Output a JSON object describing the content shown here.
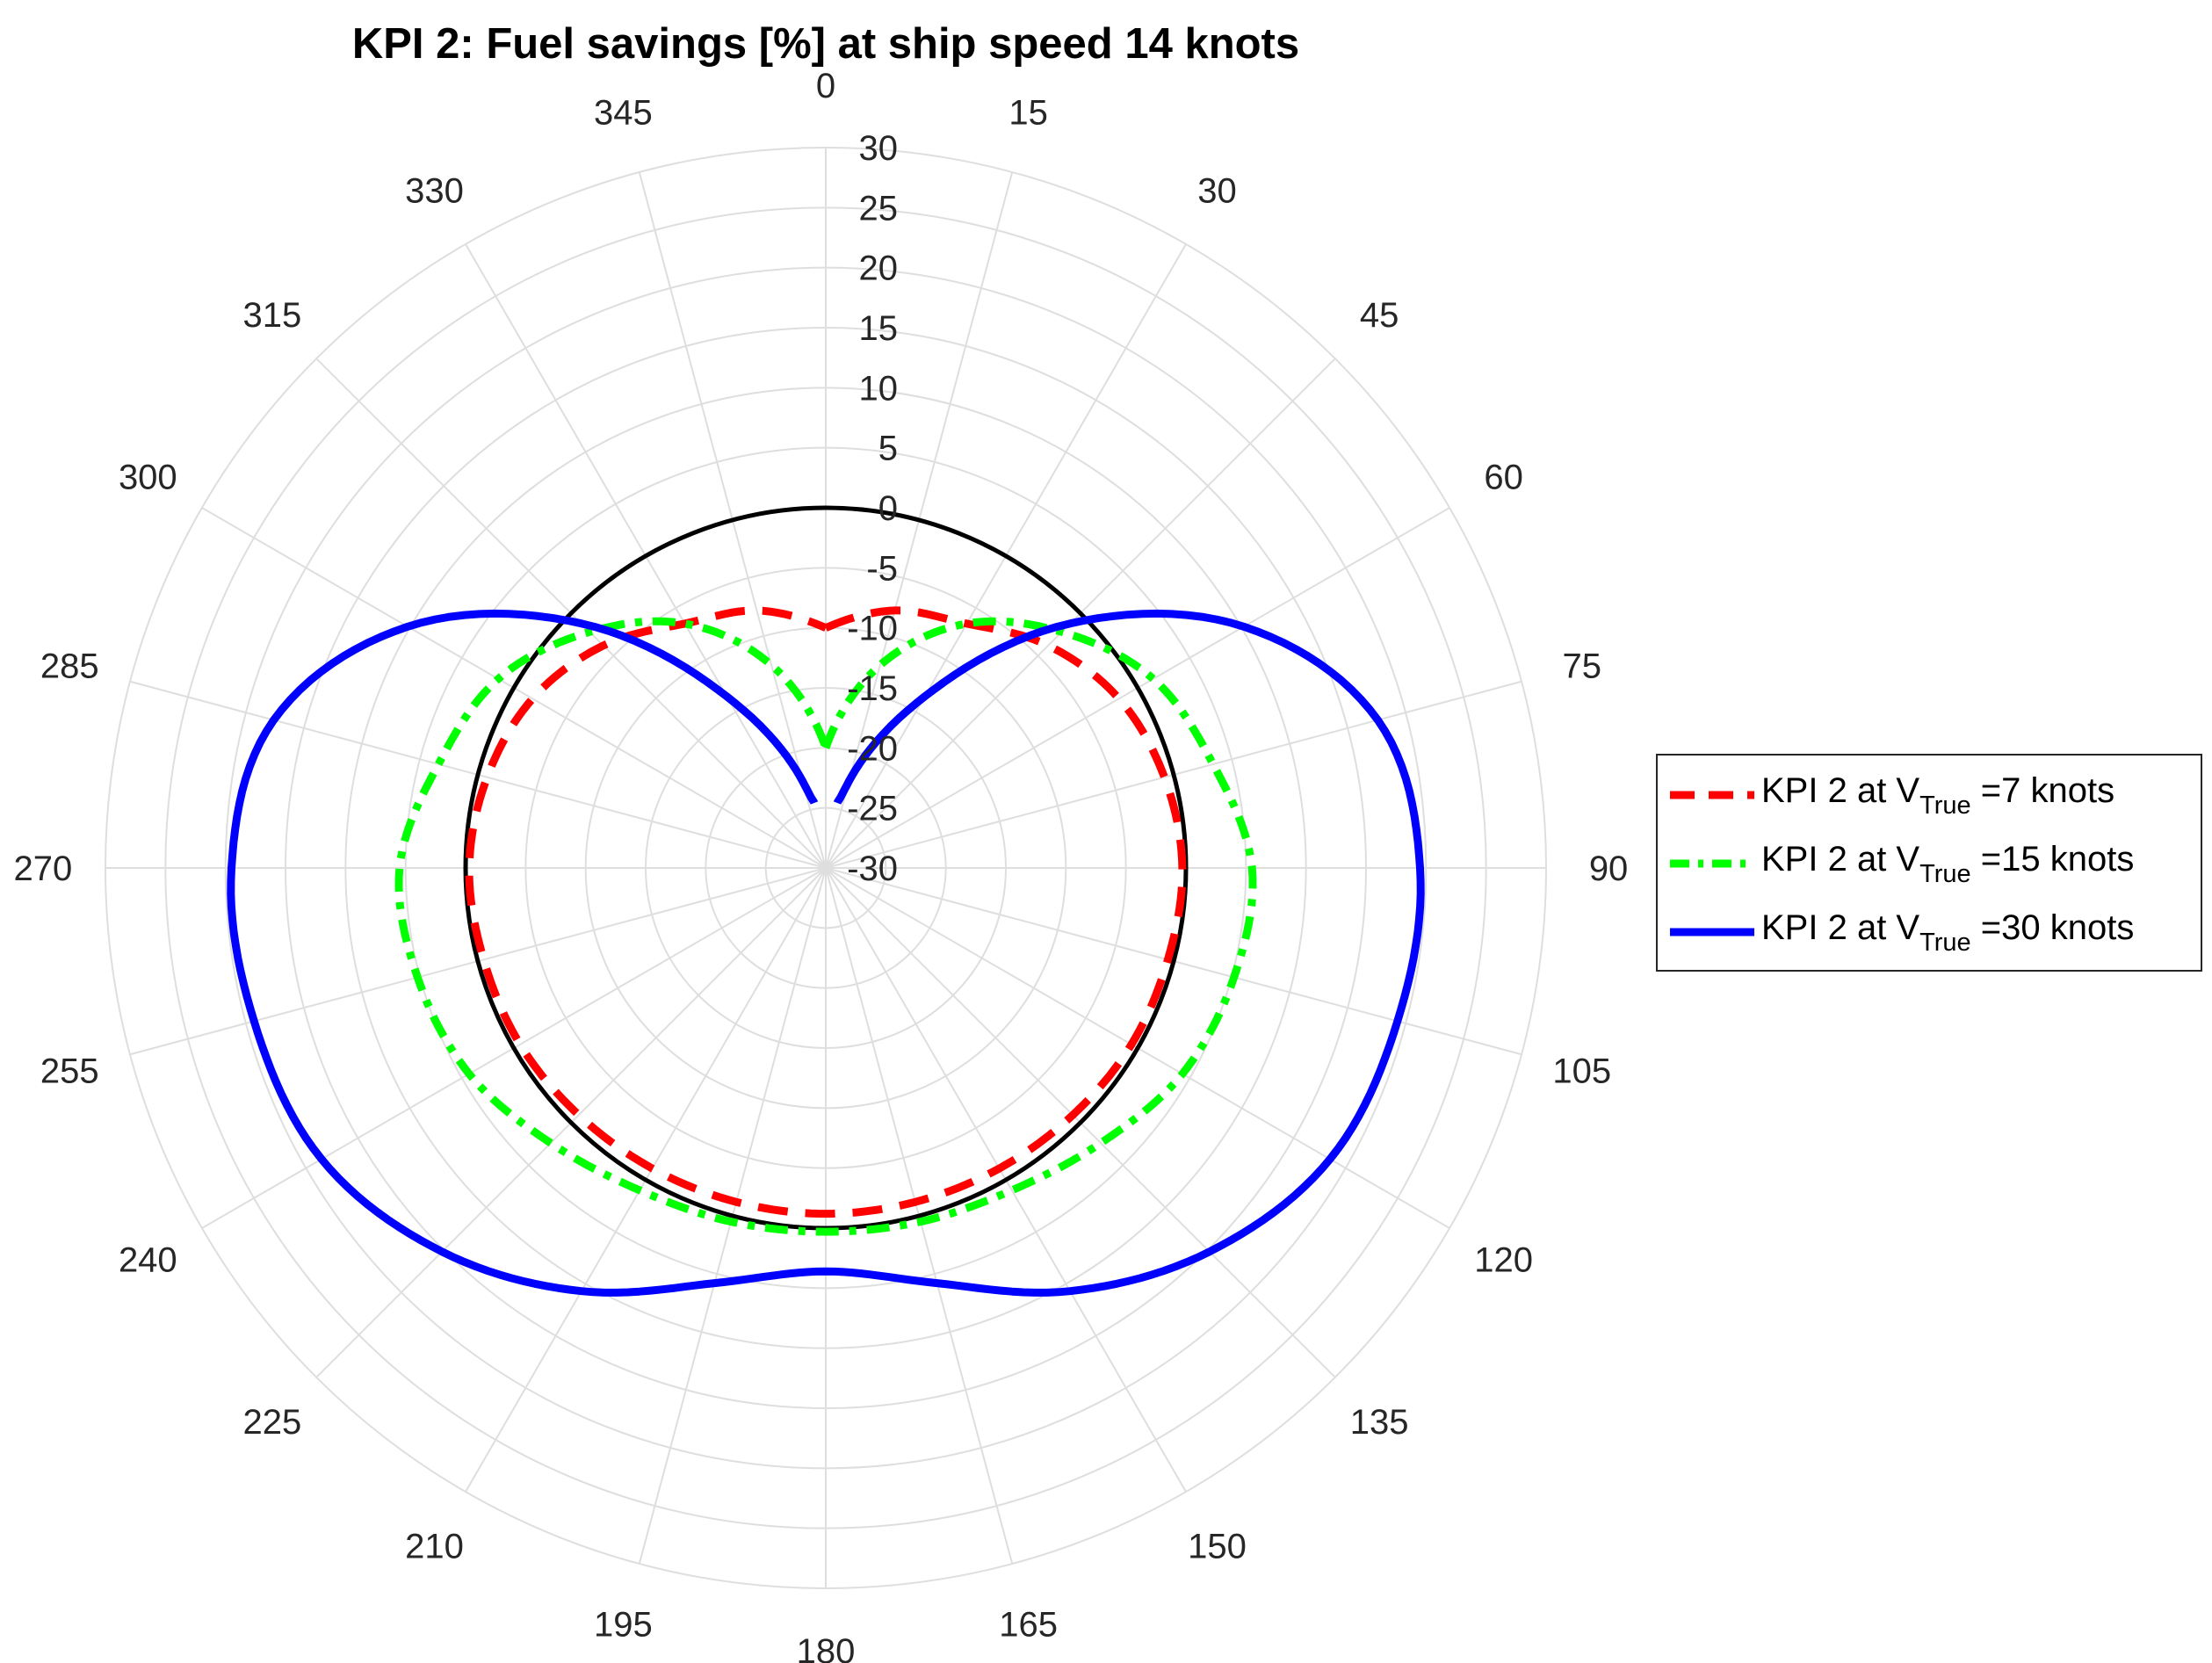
{
  "chart_data": {
    "type": "polar-line",
    "title": "KPI 2: Fuel savings [%] at ship speed 14 knots",
    "theta_direction": "clockwise",
    "theta_zero": "top",
    "theta_ticks": [
      0,
      15,
      30,
      45,
      60,
      75,
      90,
      105,
      120,
      135,
      150,
      165,
      180,
      195,
      210,
      225,
      240,
      255,
      270,
      285,
      300,
      315,
      330,
      345
    ],
    "r_ticks": [
      -30,
      -25,
      -20,
      -15,
      -10,
      -5,
      0,
      5,
      10,
      15,
      20,
      25,
      30
    ],
    "r_lim": [
      -30,
      30
    ],
    "grid": true,
    "reference_circle": {
      "value": 0,
      "color": "#000000"
    },
    "legend_position": "outside-right",
    "series": [
      {
        "name": "KPI 2 at V_True =7 knots",
        "legend_prefix": "KPI 2 at V",
        "legend_sub": "True",
        "legend_suffix": " =7 knots",
        "color": "#ff0000",
        "style": "dashed",
        "theta": [
          0,
          15,
          30,
          45,
          60,
          75,
          90,
          105,
          120,
          135,
          150,
          165,
          180,
          195,
          210,
          225,
          240,
          255,
          270,
          285,
          300,
          315,
          330,
          345,
          360
        ],
        "r": [
          -10,
          -7.8,
          -6.5,
          -3.8,
          -1.8,
          -0.8,
          -0.3,
          -0.5,
          -0.6,
          -0.9,
          -1.1,
          -1.2,
          -1.2,
          -1.2,
          -1.1,
          -0.9,
          -0.6,
          -0.5,
          -0.3,
          -0.8,
          -1.8,
          -3.8,
          -6.5,
          -7.8,
          -10
        ]
      },
      {
        "name": "KPI 2 at V_True =15 knots",
        "legend_prefix": "KPI 2 at V",
        "legend_sub": "True",
        "legend_suffix": " =15 knots",
        "color": "#00ff00",
        "style": "dashdot",
        "theta": [
          0,
          15,
          30,
          45,
          60,
          75,
          90,
          105,
          120,
          135,
          150,
          165,
          180,
          195,
          210,
          225,
          240,
          255,
          270,
          285,
          300,
          315,
          330,
          345,
          360
        ],
        "r": [
          -20,
          -12.5,
          -6.5,
          -2.2,
          1.5,
          3.4,
          5.5,
          5.2,
          4.3,
          2.4,
          1,
          0.5,
          0.3,
          0.5,
          1,
          2.4,
          4.3,
          5.2,
          5.5,
          3.4,
          1.5,
          -2.2,
          -6.5,
          -12.5,
          -20
        ]
      },
      {
        "name": "KPI 2 at V_True =30 knots",
        "legend_prefix": "KPI 2 at V",
        "legend_sub": "True",
        "legend_suffix": " =30 knots",
        "color": "#0000ff",
        "style": "solid",
        "theta": [
          10,
          15,
          30,
          45,
          60,
          75,
          90,
          105,
          120,
          135,
          150,
          165,
          180,
          195,
          210,
          225,
          240,
          255,
          270,
          285,
          300,
          315,
          330,
          345,
          350
        ],
        "r": [
          -24.5,
          -22.5,
          -13.5,
          -1.2,
          10.2,
          17.6,
          19.5,
          19.3,
          18.5,
          15.2,
          10.7,
          5.8,
          3.6,
          5.8,
          10.7,
          15.2,
          18.5,
          19.3,
          19.5,
          17.6,
          10.2,
          -1.2,
          -13.5,
          -22.5,
          -24.5
        ]
      }
    ]
  }
}
